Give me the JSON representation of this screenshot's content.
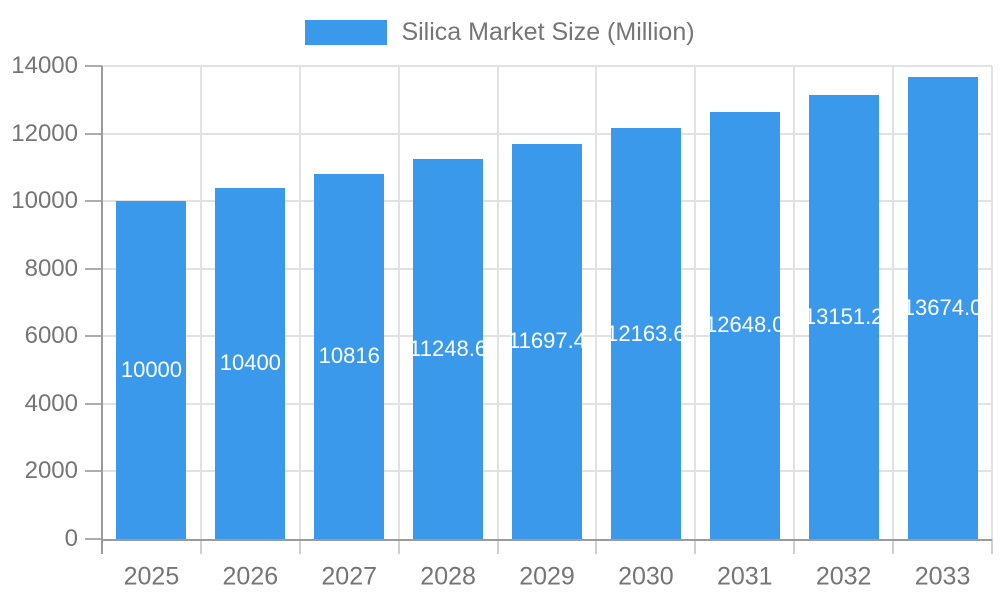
{
  "chart_data": {
    "type": "bar",
    "title": "Silica Market Size (Million)",
    "categories": [
      "2025",
      "2026",
      "2027",
      "2028",
      "2029",
      "2030",
      "2031",
      "2032",
      "2033"
    ],
    "series": [
      {
        "name": "Silica Market Size (Million)",
        "values": [
          10000,
          10400,
          10816,
          11248.6,
          11697.4,
          12163.6,
          12648.0,
          13151.2,
          13674.0
        ],
        "labels": [
          "10000",
          "10400",
          "10816",
          "11248.6",
          "11697.4",
          "12163.6",
          "12648.0",
          "13151.2",
          "13674.0"
        ]
      }
    ],
    "xlabel": "",
    "ylabel": "",
    "ylim": [
      0,
      14000
    ],
    "y_ticks": [
      0,
      2000,
      4000,
      6000,
      8000,
      10000,
      12000,
      14000
    ],
    "grid": true,
    "legend_position": "top-center",
    "data_label_position": "center-of-bar",
    "colors": {
      "bar": "#3B99EC",
      "axis_text": "#757575",
      "data_label": "#FFFFFF",
      "grid_line": "#E2E2E2",
      "axis_line": "#9B9B9B",
      "y_tick_mark": "#ADADAD",
      "x_tick_mark": "#CFCFCF",
      "background": "#FFFFFF"
    }
  }
}
